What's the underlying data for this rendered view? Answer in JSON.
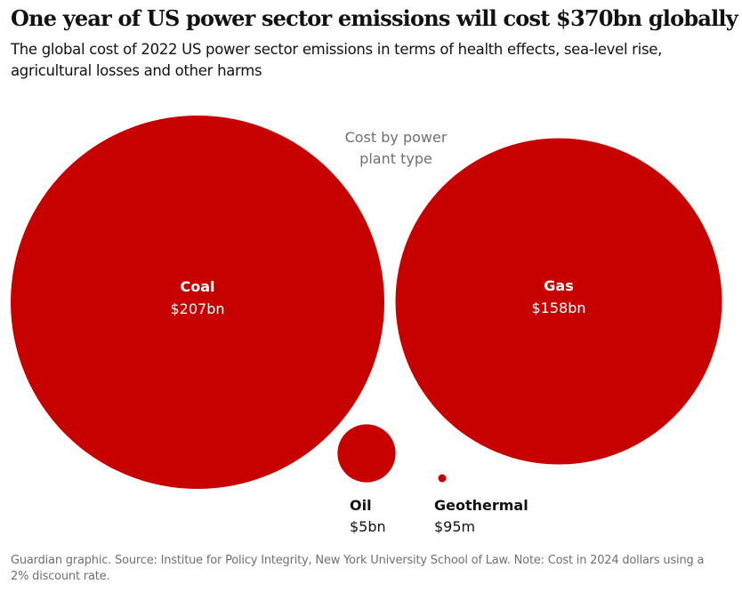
{
  "header": {
    "title": "One year of US power sector emissions will cost $370bn globally",
    "subtitle": "The global cost of 2022 US power sector emissions in terms of health effects, sea-level rise, agricultural losses and other harms"
  },
  "footer": {
    "source": "Guardian graphic. Source: Institue for Policy Integrity, New York University School of Law. Note: Cost in 2024 dollars using a 2% discount rate."
  },
  "colors": {
    "bubble": "#c70000",
    "annotation": "#707070",
    "text": "#121212",
    "inside_label": "#ffffff"
  },
  "chart_data": {
    "type": "bubble",
    "title": "One year of US power sector emissions will cost $370bn globally",
    "annotation": "Cost by power plant type",
    "annotation_lines": [
      "Cost by power",
      "plant type"
    ],
    "unit": "USD",
    "total_label": "$370bn",
    "categories": [
      "Coal",
      "Gas",
      "Oil",
      "Geothermal"
    ],
    "values": [
      207000000000,
      158000000000,
      5000000000,
      95000000
    ],
    "value_labels": [
      "$207bn",
      "$158bn",
      "$5bn",
      "$95m"
    ],
    "label_position": [
      "inside",
      "inside",
      "below",
      "below"
    ]
  }
}
